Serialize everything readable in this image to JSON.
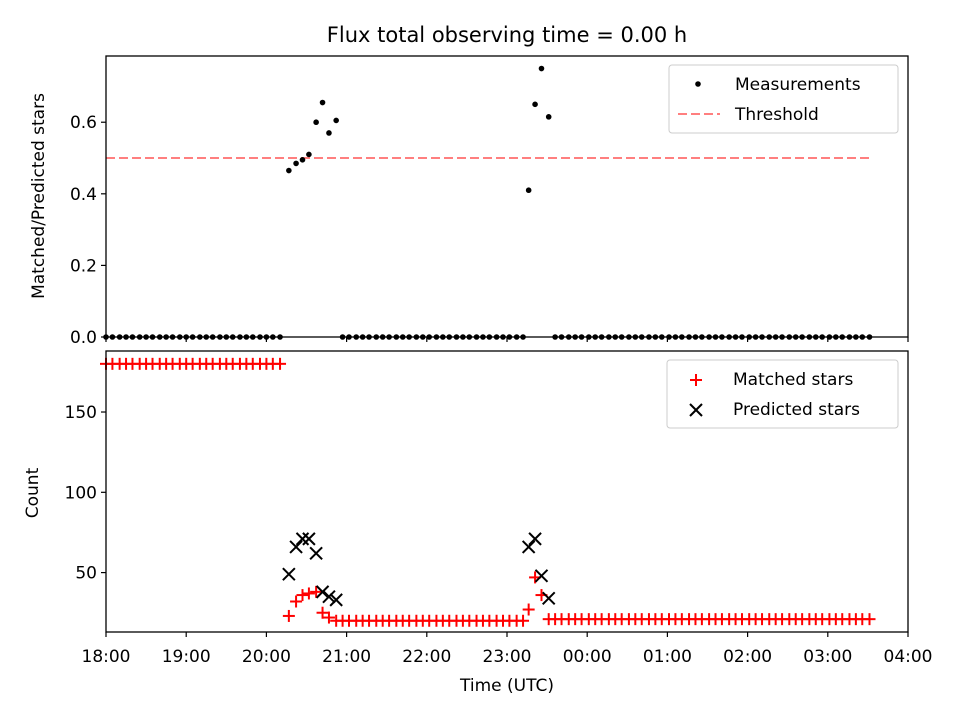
{
  "figure": {
    "title": "Flux total observing time = 0.00 h",
    "xlabel": "Time (UTC)",
    "x_ticks": [
      "18:00",
      "19:00",
      "20:00",
      "21:00",
      "22:00",
      "23:00",
      "00:00",
      "01:00",
      "02:00",
      "03:00",
      "04:00"
    ]
  },
  "chart_data": [
    {
      "type": "scatter",
      "title": "Flux total observing time = 0.00 h",
      "ylabel": "Matched/Predicted stars",
      "xlim": [
        18.0,
        28.0
      ],
      "ylim": [
        0,
        0.785
      ],
      "y_ticks": [
        "0.0",
        "0.2",
        "0.4",
        "0.6"
      ],
      "y_tick_values": [
        0,
        0.2,
        0.4,
        0.6
      ],
      "legend_position": "top-right",
      "legend": [
        "Measurements",
        "Threshold"
      ],
      "threshold": {
        "name": "Threshold",
        "value": 0.5,
        "x_range": [
          18.0,
          27.55
        ],
        "color": "#ff7f7f",
        "style": "dashed"
      },
      "series": [
        {
          "name": "Measurements",
          "color": "#000000",
          "points": [
            [
              18.0,
              0
            ],
            [
              18.08,
              0
            ],
            [
              18.17,
              0
            ],
            [
              18.25,
              0
            ],
            [
              18.33,
              0
            ],
            [
              18.42,
              0
            ],
            [
              18.5,
              0
            ],
            [
              18.58,
              0
            ],
            [
              18.67,
              0
            ],
            [
              18.75,
              0
            ],
            [
              18.83,
              0
            ],
            [
              18.92,
              0
            ],
            [
              19.0,
              0
            ],
            [
              19.08,
              0
            ],
            [
              19.17,
              0
            ],
            [
              19.25,
              0
            ],
            [
              19.33,
              0
            ],
            [
              19.42,
              0
            ],
            [
              19.5,
              0
            ],
            [
              19.58,
              0
            ],
            [
              19.67,
              0
            ],
            [
              19.75,
              0
            ],
            [
              19.83,
              0
            ],
            [
              19.92,
              0
            ],
            [
              20.0,
              0
            ],
            [
              20.08,
              0
            ],
            [
              20.17,
              0
            ],
            [
              20.28,
              0.465
            ],
            [
              20.37,
              0.485
            ],
            [
              20.45,
              0.495
            ],
            [
              20.53,
              0.51
            ],
            [
              20.62,
              0.6
            ],
            [
              20.7,
              0.655
            ],
            [
              20.78,
              0.57
            ],
            [
              20.87,
              0.605
            ],
            [
              20.95,
              0
            ],
            [
              21.03,
              0
            ],
            [
              21.12,
              0
            ],
            [
              21.2,
              0
            ],
            [
              21.28,
              0
            ],
            [
              21.37,
              0
            ],
            [
              21.45,
              0
            ],
            [
              21.53,
              0
            ],
            [
              21.62,
              0
            ],
            [
              21.7,
              0
            ],
            [
              21.78,
              0
            ],
            [
              21.87,
              0
            ],
            [
              21.95,
              0
            ],
            [
              22.03,
              0
            ],
            [
              22.12,
              0
            ],
            [
              22.2,
              0
            ],
            [
              22.28,
              0
            ],
            [
              22.37,
              0
            ],
            [
              22.45,
              0
            ],
            [
              22.53,
              0
            ],
            [
              22.62,
              0
            ],
            [
              22.7,
              0
            ],
            [
              22.78,
              0
            ],
            [
              22.87,
              0
            ],
            [
              22.95,
              0
            ],
            [
              23.03,
              0
            ],
            [
              23.12,
              0
            ],
            [
              23.2,
              0
            ],
            [
              23.27,
              0.41
            ],
            [
              23.35,
              0.65
            ],
            [
              23.43,
              0.75
            ],
            [
              23.52,
              0.615
            ],
            [
              23.6,
              0
            ],
            [
              23.68,
              0
            ],
            [
              23.77,
              0
            ],
            [
              23.85,
              0
            ],
            [
              23.93,
              0
            ],
            [
              24.02,
              0
            ],
            [
              24.1,
              0
            ],
            [
              24.18,
              0
            ],
            [
              24.27,
              0
            ],
            [
              24.35,
              0
            ],
            [
              24.43,
              0
            ],
            [
              24.52,
              0
            ],
            [
              24.6,
              0
            ],
            [
              24.68,
              0
            ],
            [
              24.77,
              0
            ],
            [
              24.85,
              0
            ],
            [
              24.93,
              0
            ],
            [
              25.02,
              0
            ],
            [
              25.1,
              0
            ],
            [
              25.18,
              0
            ],
            [
              25.27,
              0
            ],
            [
              25.35,
              0
            ],
            [
              25.43,
              0
            ],
            [
              25.52,
              0
            ],
            [
              25.6,
              0
            ],
            [
              25.68,
              0
            ],
            [
              25.77,
              0
            ],
            [
              25.85,
              0
            ],
            [
              25.93,
              0
            ],
            [
              26.02,
              0
            ],
            [
              26.1,
              0
            ],
            [
              26.18,
              0
            ],
            [
              26.27,
              0
            ],
            [
              26.35,
              0
            ],
            [
              26.43,
              0
            ],
            [
              26.52,
              0
            ],
            [
              26.6,
              0
            ],
            [
              26.68,
              0
            ],
            [
              26.77,
              0
            ],
            [
              26.85,
              0
            ],
            [
              26.93,
              0
            ],
            [
              27.02,
              0
            ],
            [
              27.1,
              0
            ],
            [
              27.18,
              0
            ],
            [
              27.27,
              0
            ],
            [
              27.35,
              0
            ],
            [
              27.43,
              0
            ],
            [
              27.52,
              0
            ]
          ]
        }
      ]
    },
    {
      "type": "scatter",
      "ylabel": "Count",
      "xlabel": "Time (UTC)",
      "xlim": [
        18.0,
        28.0
      ],
      "ylim": [
        13,
        188
      ],
      "y_ticks": [
        "50",
        "100",
        "150"
      ],
      "y_tick_values": [
        50,
        100,
        150
      ],
      "legend_position": "top-right",
      "legend": [
        "Matched stars",
        "Predicted stars"
      ],
      "series": [
        {
          "name": "Matched stars",
          "marker": "plus",
          "color": "#ff0000",
          "points": [
            [
              18.0,
              180
            ],
            [
              18.08,
              180
            ],
            [
              18.17,
              180
            ],
            [
              18.25,
              180
            ],
            [
              18.33,
              180
            ],
            [
              18.42,
              180
            ],
            [
              18.5,
              180
            ],
            [
              18.58,
              180
            ],
            [
              18.67,
              180
            ],
            [
              18.75,
              180
            ],
            [
              18.83,
              180
            ],
            [
              18.92,
              180
            ],
            [
              19.0,
              180
            ],
            [
              19.08,
              180
            ],
            [
              19.17,
              180
            ],
            [
              19.25,
              180
            ],
            [
              19.33,
              180
            ],
            [
              19.42,
              180
            ],
            [
              19.5,
              180
            ],
            [
              19.58,
              180
            ],
            [
              19.67,
              180
            ],
            [
              19.75,
              180
            ],
            [
              19.83,
              180
            ],
            [
              19.92,
              180
            ],
            [
              20.0,
              180
            ],
            [
              20.08,
              180
            ],
            [
              20.17,
              180
            ],
            [
              20.28,
              23
            ],
            [
              20.37,
              32
            ],
            [
              20.45,
              36
            ],
            [
              20.53,
              37
            ],
            [
              20.62,
              38
            ],
            [
              20.7,
              25
            ],
            [
              20.78,
              22
            ],
            [
              20.87,
              20
            ],
            [
              20.95,
              20
            ],
            [
              21.03,
              20
            ],
            [
              21.12,
              20
            ],
            [
              21.2,
              20
            ],
            [
              21.28,
              20
            ],
            [
              21.37,
              20
            ],
            [
              21.45,
              20
            ],
            [
              21.53,
              20
            ],
            [
              21.62,
              20
            ],
            [
              21.7,
              20
            ],
            [
              21.78,
              20
            ],
            [
              21.87,
              20
            ],
            [
              21.95,
              20
            ],
            [
              22.03,
              20
            ],
            [
              22.12,
              20
            ],
            [
              22.2,
              20
            ],
            [
              22.28,
              20
            ],
            [
              22.37,
              20
            ],
            [
              22.45,
              20
            ],
            [
              22.53,
              20
            ],
            [
              22.62,
              20
            ],
            [
              22.7,
              20
            ],
            [
              22.78,
              20
            ],
            [
              22.87,
              20
            ],
            [
              22.95,
              20
            ],
            [
              23.03,
              20
            ],
            [
              23.12,
              20
            ],
            [
              23.2,
              20
            ],
            [
              23.27,
              27
            ],
            [
              23.35,
              47
            ],
            [
              23.43,
              36
            ],
            [
              23.52,
              21
            ],
            [
              23.6,
              21
            ],
            [
              23.68,
              21
            ],
            [
              23.77,
              21
            ],
            [
              23.85,
              21
            ],
            [
              23.93,
              21
            ],
            [
              24.02,
              21
            ],
            [
              24.1,
              21
            ],
            [
              24.18,
              21
            ],
            [
              24.27,
              21
            ],
            [
              24.35,
              21
            ],
            [
              24.43,
              21
            ],
            [
              24.52,
              21
            ],
            [
              24.6,
              21
            ],
            [
              24.68,
              21
            ],
            [
              24.77,
              21
            ],
            [
              24.85,
              21
            ],
            [
              24.93,
              21
            ],
            [
              25.02,
              21
            ],
            [
              25.1,
              21
            ],
            [
              25.18,
              21
            ],
            [
              25.27,
              21
            ],
            [
              25.35,
              21
            ],
            [
              25.43,
              21
            ],
            [
              25.52,
              21
            ],
            [
              25.6,
              21
            ],
            [
              25.68,
              21
            ],
            [
              25.77,
              21
            ],
            [
              25.85,
              21
            ],
            [
              25.93,
              21
            ],
            [
              26.02,
              21
            ],
            [
              26.1,
              21
            ],
            [
              26.18,
              21
            ],
            [
              26.27,
              21
            ],
            [
              26.35,
              21
            ],
            [
              26.43,
              21
            ],
            [
              26.52,
              21
            ],
            [
              26.6,
              21
            ],
            [
              26.68,
              21
            ],
            [
              26.77,
              21
            ],
            [
              26.85,
              21
            ],
            [
              26.93,
              21
            ],
            [
              27.02,
              21
            ],
            [
              27.1,
              21
            ],
            [
              27.18,
              21
            ],
            [
              27.27,
              21
            ],
            [
              27.35,
              21
            ],
            [
              27.43,
              21
            ],
            [
              27.52,
              21
            ]
          ]
        },
        {
          "name": "Predicted stars",
          "marker": "x",
          "color": "#000000",
          "points": [
            [
              20.28,
              49
            ],
            [
              20.37,
              66
            ],
            [
              20.45,
              71
            ],
            [
              20.53,
              71
            ],
            [
              20.62,
              62
            ],
            [
              20.7,
              38
            ],
            [
              20.78,
              35
            ],
            [
              20.87,
              33
            ],
            [
              23.27,
              66
            ],
            [
              23.35,
              71
            ],
            [
              23.43,
              48
            ],
            [
              23.52,
              34
            ]
          ]
        }
      ]
    }
  ]
}
